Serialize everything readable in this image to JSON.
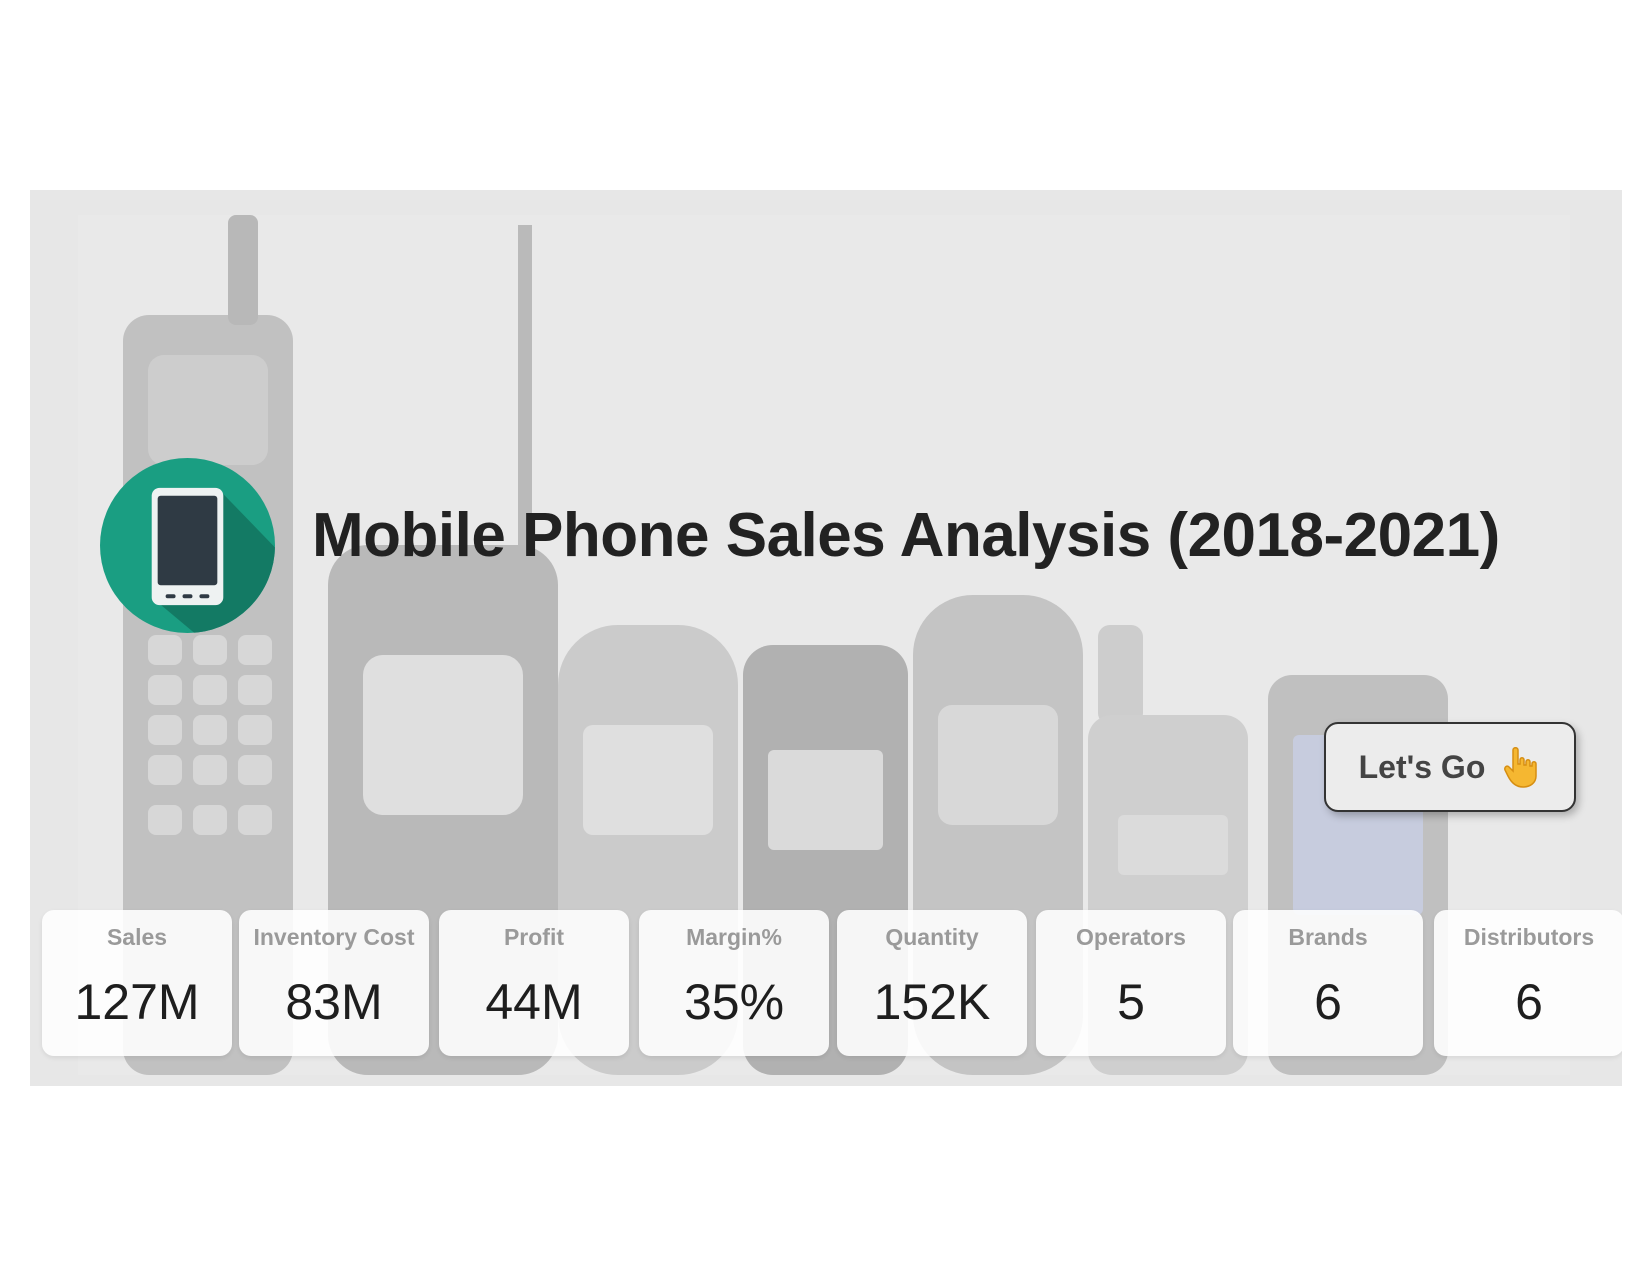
{
  "banner": {
    "title": "Mobile Phone Sales Analysis (2018-2021)",
    "background_icon": "vintage-phones-illustration",
    "app_icon": "mobile-phone-icon",
    "colors": {
      "banner_bg": "#e7e7e7",
      "icon_circle": "#1a9e82",
      "icon_shadow": "#137a64",
      "phone_screen": "#2f3a44",
      "title_text": "#222222",
      "kpi_label": "#9a9a9a",
      "kpi_value": "#1e1e1e"
    }
  },
  "cta": {
    "label": "Let's Go",
    "icon": "pointing-hand-icon"
  },
  "kpis": [
    {
      "label": "Sales",
      "value": "127M"
    },
    {
      "label": "Inventory Cost",
      "value": "83M"
    },
    {
      "label": "Profit",
      "value": "44M"
    },
    {
      "label": "Margin%",
      "value": "35%"
    },
    {
      "label": "Quantity",
      "value": "152K"
    },
    {
      "label": "Operators",
      "value": "5"
    },
    {
      "label": "Brands",
      "value": "6"
    },
    {
      "label": "Distributors",
      "value": "6"
    }
  ]
}
